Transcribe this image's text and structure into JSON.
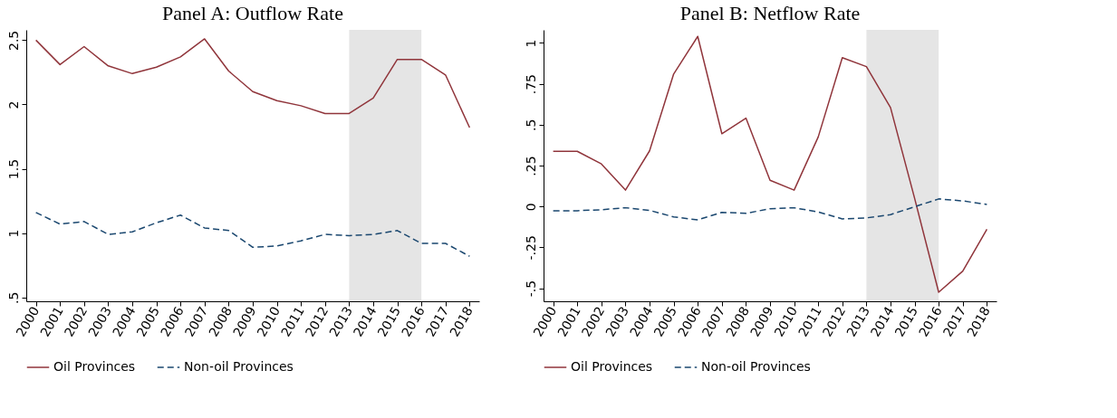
{
  "chart_data": [
    {
      "type": "line",
      "title": "Panel A: Outflow Rate",
      "x": [
        2000,
        2001,
        2002,
        2003,
        2004,
        2005,
        2006,
        2007,
        2008,
        2009,
        2010,
        2011,
        2012,
        2013,
        2014,
        2015,
        2016,
        2017,
        2018
      ],
      "series": [
        {
          "name": "Oil Provinces",
          "color": "#90353b",
          "line_style": "solid",
          "values": [
            2.5,
            2.31,
            2.45,
            2.3,
            2.24,
            2.29,
            2.37,
            2.51,
            2.26,
            2.1,
            2.03,
            1.99,
            1.93,
            1.93,
            2.05,
            2.35,
            2.35,
            2.23,
            1.82
          ]
        },
        {
          "name": "Non-oil Provinces",
          "color": "#1a476f",
          "line_style": "dashed",
          "values": [
            1.16,
            1.07,
            1.09,
            0.99,
            1.01,
            1.08,
            1.14,
            1.04,
            1.02,
            0.89,
            0.9,
            0.94,
            0.99,
            0.98,
            0.99,
            1.02,
            0.92,
            0.92,
            0.82
          ]
        }
      ],
      "xlim": [
        1999.6,
        2018.4
      ],
      "xticks": [
        2000,
        2001,
        2002,
        2003,
        2004,
        2005,
        2006,
        2007,
        2008,
        2009,
        2010,
        2011,
        2012,
        2013,
        2014,
        2015,
        2016,
        2017,
        2018
      ],
      "ylim": [
        0.47,
        2.58
      ],
      "yticks": [
        {
          "value": 0.5,
          "label": ".5"
        },
        1,
        1.5,
        2,
        2.5
      ],
      "bands": [
        {
          "axis": "x",
          "from": 2013,
          "to": 2016,
          "color": "#e5e5e5"
        }
      ],
      "grid": false,
      "legend": "bottom"
    },
    {
      "type": "line",
      "title": "Panel B: Netflow Rate",
      "x": [
        2000,
        2001,
        2002,
        2003,
        2004,
        2005,
        2006,
        2007,
        2008,
        2009,
        2010,
        2011,
        2012,
        2013,
        2014,
        2015,
        2016,
        2017,
        2018
      ],
      "series": [
        {
          "name": "Oil Provinces",
          "color": "#90353b",
          "line_style": "solid",
          "values": [
            0.337,
            0.337,
            0.26,
            0.1,
            0.34,
            0.81,
            1.04,
            0.445,
            0.54,
            0.16,
            0.1,
            0.425,
            0.91,
            0.855,
            0.605,
            0.05,
            -0.525,
            -0.395,
            -0.14
          ]
        },
        {
          "name": "Non-oil Provinces",
          "color": "#1a476f",
          "line_style": "dashed",
          "values": [
            -0.026,
            -0.026,
            -0.02,
            -0.008,
            -0.024,
            -0.064,
            -0.082,
            -0.036,
            -0.042,
            -0.014,
            -0.008,
            -0.034,
            -0.076,
            -0.07,
            -0.05,
            -0.002,
            0.046,
            0.034,
            0.012
          ]
        }
      ],
      "xlim": [
        1999.6,
        2018.4
      ],
      "xticks": [
        2000,
        2001,
        2002,
        2003,
        2004,
        2005,
        2006,
        2007,
        2008,
        2009,
        2010,
        2011,
        2012,
        2013,
        2014,
        2015,
        2016,
        2017,
        2018
      ],
      "ylim": [
        -0.58,
        1.08
      ],
      "yticks": [
        {
          "value": -0.5,
          "label": "-.5"
        },
        {
          "value": -0.25,
          "label": "-.25"
        },
        0,
        {
          "value": 0.25,
          "label": ".25"
        },
        {
          "value": 0.5,
          "label": ".5"
        },
        {
          "value": 0.75,
          "label": ".75"
        },
        1
      ],
      "bands": [
        {
          "axis": "x",
          "from": 2013,
          "to": 2016,
          "color": "#e5e5e5"
        }
      ],
      "grid": false,
      "legend": "bottom"
    }
  ]
}
